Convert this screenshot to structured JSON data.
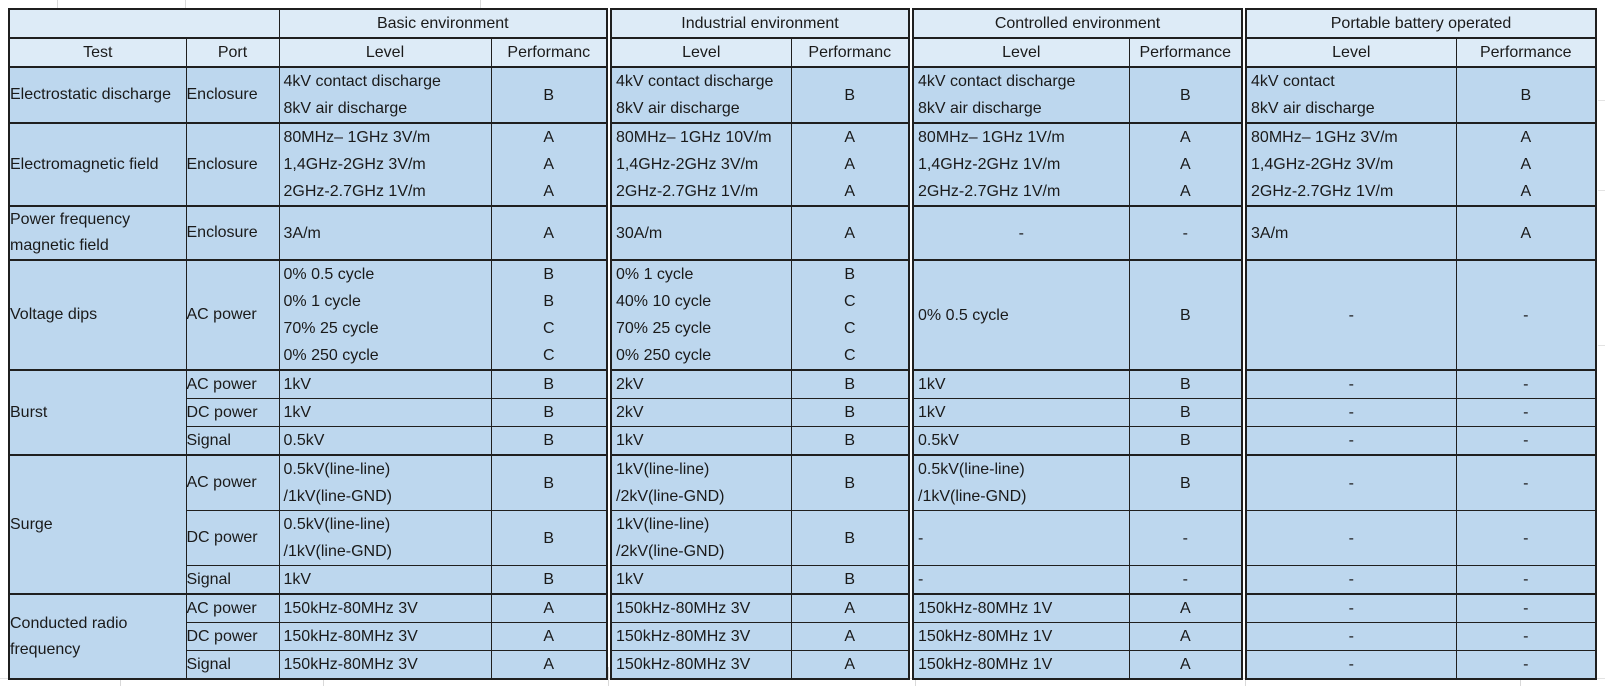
{
  "colors": {
    "header_bg": "#ddebf7",
    "body_bg": "#bdd7ee",
    "border": "#1f1f1f",
    "text": "#1a1a1a",
    "margin_gridline": "#d9d9d9"
  },
  "table": {
    "col_headers": {
      "test": "Test",
      "port": "Port"
    },
    "groups": [
      {
        "name": "Basic environment",
        "level_label": "Level",
        "perf_label": "Performanc"
      },
      {
        "name": "Industrial environment",
        "level_label": "Level",
        "perf_label": "Performanc"
      },
      {
        "name": "Controlled environment",
        "level_label": "Level",
        "perf_label": "Performance"
      },
      {
        "name": "Portable battery operated",
        "level_label": "Level",
        "perf_label": "Performance"
      }
    ],
    "rows": [
      {
        "test": "Electrostatic discharge",
        "subrows": [
          {
            "port": "Enclosure",
            "cells": [
              {
                "level": [
                  "4kV contact discharge",
                  "8kV air discharge"
                ],
                "perf": [
                  "B"
                ]
              },
              {
                "level": [
                  "4kV contact discharge",
                  "8kV air discharge"
                ],
                "perf": [
                  "B"
                ]
              },
              {
                "level": [
                  "4kV contact discharge",
                  "8kV air discharge"
                ],
                "perf": [
                  "B"
                ]
              },
              {
                "level": [
                  "4kV contact",
                  "8kV air discharge"
                ],
                "perf": [
                  "B"
                ]
              }
            ]
          }
        ]
      },
      {
        "test": "Electromagnetic field",
        "subrows": [
          {
            "port": "Enclosure",
            "cells": [
              {
                "level": [
                  "80MHz– 1GHz 3V/m",
                  "1,4GHz-2GHz 3V/m",
                  "2GHz-2.7GHz 1V/m"
                ],
                "perf": [
                  "A",
                  "A",
                  "A"
                ]
              },
              {
                "level": [
                  "80MHz– 1GHz 10V/m",
                  "1,4GHz-2GHz 3V/m",
                  "2GHz-2.7GHz 1V/m"
                ],
                "perf": [
                  "A",
                  "A",
                  "A"
                ]
              },
              {
                "level": [
                  "80MHz– 1GHz 1V/m",
                  "1,4GHz-2GHz 1V/m",
                  "2GHz-2.7GHz 1V/m"
                ],
                "perf": [
                  "A",
                  "A",
                  "A"
                ]
              },
              {
                "level": [
                  "80MHz– 1GHz 3V/m",
                  "1,4GHz-2GHz 3V/m",
                  "2GHz-2.7GHz 1V/m"
                ],
                "perf": [
                  "A",
                  "A",
                  "A"
                ]
              }
            ]
          }
        ]
      },
      {
        "test": "Power frequency magnetic field",
        "subrows": [
          {
            "port": "Enclosure",
            "cells": [
              {
                "level": [
                  "3A/m"
                ],
                "perf": [
                  "A"
                ]
              },
              {
                "level": [
                  "30A/m"
                ],
                "perf": [
                  "A"
                ]
              },
              {
                "level": [
                  "-"
                ],
                "perf": [
                  "-"
                ],
                "center": true
              },
              {
                "level": [
                  "3A/m"
                ],
                "perf": [
                  "A"
                ]
              }
            ]
          }
        ]
      },
      {
        "test": "Voltage dips",
        "subrows": [
          {
            "port": "AC power",
            "cells": [
              {
                "level": [
                  "0% 0.5 cycle",
                  "0% 1 cycle",
                  "70% 25 cycle",
                  "0% 250 cycle"
                ],
                "perf": [
                  "B",
                  "B",
                  "C",
                  "C"
                ]
              },
              {
                "level": [
                  "0% 1 cycle",
                  "40% 10 cycle",
                  "70% 25 cycle",
                  "0% 250 cycle"
                ],
                "perf": [
                  "B",
                  "C",
                  "C",
                  "C"
                ]
              },
              {
                "level": [
                  "0% 0.5 cycle"
                ],
                "perf": [
                  "B"
                ]
              },
              {
                "level": [
                  "-"
                ],
                "perf": [
                  "-"
                ],
                "center": true
              }
            ]
          }
        ]
      },
      {
        "test": "Burst",
        "subrows": [
          {
            "port": "AC power",
            "cells": [
              {
                "level": [
                  "1kV"
                ],
                "perf": [
                  "B"
                ]
              },
              {
                "level": [
                  "2kV"
                ],
                "perf": [
                  "B"
                ]
              },
              {
                "level": [
                  "1kV"
                ],
                "perf": [
                  "B"
                ]
              },
              {
                "level": [
                  "-"
                ],
                "perf": [
                  "-"
                ],
                "center": true
              }
            ]
          },
          {
            "port": "DC power",
            "cells": [
              {
                "level": [
                  "1kV"
                ],
                "perf": [
                  "B"
                ]
              },
              {
                "level": [
                  "2kV"
                ],
                "perf": [
                  "B"
                ]
              },
              {
                "level": [
                  "1kV"
                ],
                "perf": [
                  "B"
                ]
              },
              {
                "level": [
                  "-"
                ],
                "perf": [
                  "-"
                ],
                "center": true
              }
            ]
          },
          {
            "port": "Signal",
            "cells": [
              {
                "level": [
                  "0.5kV"
                ],
                "perf": [
                  "B"
                ]
              },
              {
                "level": [
                  "1kV"
                ],
                "perf": [
                  "B"
                ]
              },
              {
                "level": [
                  "0.5kV"
                ],
                "perf": [
                  "B"
                ]
              },
              {
                "level": [
                  "-"
                ],
                "perf": [
                  "-"
                ],
                "center": true
              }
            ]
          }
        ]
      },
      {
        "test": "Surge",
        "subrows": [
          {
            "port": "AC power",
            "cells": [
              {
                "level": [
                  "0.5kV(line-line)",
                  "/1kV(line-GND)"
                ],
                "perf": [
                  "B"
                ]
              },
              {
                "level": [
                  "1kV(line-line)",
                  "/2kV(line-GND)"
                ],
                "perf": [
                  "B"
                ]
              },
              {
                "level": [
                  "0.5kV(line-line)",
                  "/1kV(line-GND)"
                ],
                "perf": [
                  "B"
                ]
              },
              {
                "level": [
                  "-"
                ],
                "perf": [
                  "-"
                ],
                "center": true
              }
            ]
          },
          {
            "port": "DC power",
            "cells": [
              {
                "level": [
                  "0.5kV(line-line)",
                  "/1kV(line-GND)"
                ],
                "perf": [
                  "B"
                ]
              },
              {
                "level": [
                  "1kV(line-line)",
                  "/2kV(line-GND)"
                ],
                "perf": [
                  "B"
                ]
              },
              {
                "level": [
                  "-"
                ],
                "perf": [
                  "-"
                ]
              },
              {
                "level": [
                  "-"
                ],
                "perf": [
                  "-"
                ],
                "center": true
              }
            ]
          },
          {
            "port": "Signal",
            "cells": [
              {
                "level": [
                  "1kV"
                ],
                "perf": [
                  "B"
                ]
              },
              {
                "level": [
                  "1kV"
                ],
                "perf": [
                  "B"
                ]
              },
              {
                "level": [
                  "-"
                ],
                "perf": [
                  "-"
                ]
              },
              {
                "level": [
                  "-"
                ],
                "perf": [
                  "-"
                ],
                "center": true
              }
            ]
          }
        ]
      },
      {
        "test": "Conducted radio frequency",
        "subrows": [
          {
            "port": "AC power",
            "cells": [
              {
                "level": [
                  "150kHz-80MHz 3V"
                ],
                "perf": [
                  "A"
                ]
              },
              {
                "level": [
                  "150kHz-80MHz 3V"
                ],
                "perf": [
                  "A"
                ]
              },
              {
                "level": [
                  "150kHz-80MHz 1V"
                ],
                "perf": [
                  "A"
                ]
              },
              {
                "level": [
                  "-"
                ],
                "perf": [
                  "-"
                ],
                "center": true
              }
            ]
          },
          {
            "port": "DC power",
            "cells": [
              {
                "level": [
                  "150kHz-80MHz 3V"
                ],
                "perf": [
                  "A"
                ]
              },
              {
                "level": [
                  "150kHz-80MHz 3V"
                ],
                "perf": [
                  "A"
                ]
              },
              {
                "level": [
                  "150kHz-80MHz 1V"
                ],
                "perf": [
                  "A"
                ]
              },
              {
                "level": [
                  "-"
                ],
                "perf": [
                  "-"
                ],
                "center": true
              }
            ]
          },
          {
            "port": "Signal",
            "cells": [
              {
                "level": [
                  "150kHz-80MHz 3V"
                ],
                "perf": [
                  "A"
                ]
              },
              {
                "level": [
                  "150kHz-80MHz 3V"
                ],
                "perf": [
                  "A"
                ]
              },
              {
                "level": [
                  "150kHz-80MHz 1V"
                ],
                "perf": [
                  "A"
                ]
              },
              {
                "level": [
                  "-"
                ],
                "perf": [
                  "-"
                ],
                "center": true
              }
            ]
          }
        ]
      }
    ]
  }
}
